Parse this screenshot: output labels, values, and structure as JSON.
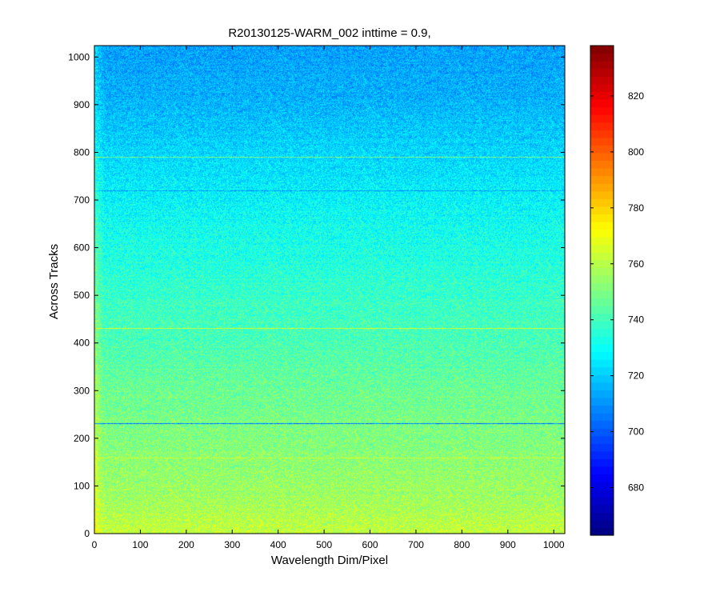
{
  "chart_data": {
    "type": "heatmap",
    "title": "R20130125-WARM_002 inttime = 0.9,",
    "xlabel": "Wavelength Dim/Pixel",
    "ylabel": "Across Tracks",
    "xlim": [
      0,
      1024
    ],
    "ylim": [
      0,
      1024
    ],
    "x_ticks": [
      0,
      100,
      200,
      300,
      400,
      500,
      600,
      700,
      800,
      900,
      1000
    ],
    "y_ticks": [
      0,
      100,
      200,
      300,
      400,
      500,
      600,
      700,
      800,
      900,
      1000
    ],
    "colormap": "jet",
    "clim": [
      663,
      838
    ],
    "colorbar_ticks": [
      680,
      700,
      720,
      740,
      760,
      780,
      800,
      820
    ],
    "gradient_profile": {
      "y": [
        0,
        50,
        100,
        200,
        300,
        400,
        500,
        600,
        700,
        800,
        900,
        1024
      ],
      "mean_value": [
        762,
        758,
        755,
        751,
        747,
        742,
        738,
        733,
        728,
        722,
        716,
        712
      ]
    },
    "streak_rows": [
      {
        "y": 232,
        "value": 705
      },
      {
        "y": 432,
        "value": 765
      },
      {
        "y": 790,
        "value": 750
      },
      {
        "y": 720,
        "value": 712
      },
      {
        "y": 160,
        "value": 765
      }
    ],
    "grid": false,
    "legend": "colorbar-right"
  }
}
